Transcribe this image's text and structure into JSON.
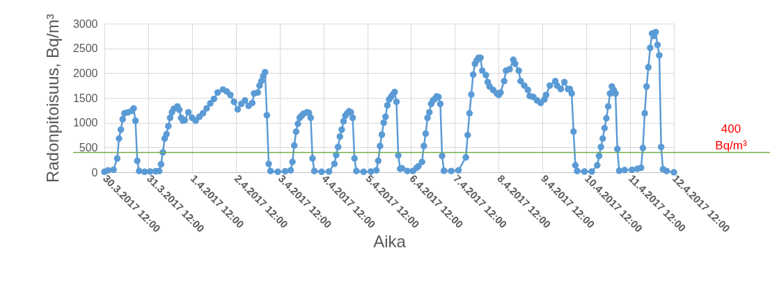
{
  "chart_data": {
    "type": "line",
    "xlabel": "Aika",
    "ylabel": "Radonpitoisuus, Bq/m³",
    "x": [
      "2017-03-30T12:00",
      "2017-03-30T14:00",
      "2017-03-30T17:00",
      "2017-03-30T19:00",
      "2017-03-30T20:00",
      "2017-03-30T21:00",
      "2017-03-30T22:00",
      "2017-03-30T23:00",
      "2017-03-31T01:00",
      "2017-03-31T03:00",
      "2017-03-31T04:00",
      "2017-03-31T05:00",
      "2017-03-31T06:00",
      "2017-03-31T07:00",
      "2017-03-31T10:00",
      "2017-03-31T13:00",
      "2017-03-31T16:00",
      "2017-03-31T18:00",
      "2017-03-31T19:00",
      "2017-03-31T20:00",
      "2017-03-31T21:00",
      "2017-03-31T22:00",
      "2017-03-31T23:00",
      "2017-04-01T00:00",
      "2017-04-01T01:00",
      "2017-04-01T02:00",
      "2017-04-01T04:00",
      "2017-04-01T05:00",
      "2017-04-01T06:00",
      "2017-04-01T07:00",
      "2017-04-01T08:00",
      "2017-04-01T10:00",
      "2017-04-01T12:00",
      "2017-04-01T14:00",
      "2017-04-01T16:00",
      "2017-04-01T18:00",
      "2017-04-01T20:00",
      "2017-04-01T22:00",
      "2017-04-02T00:00",
      "2017-04-02T02:00",
      "2017-04-02T05:00",
      "2017-04-02T07:00",
      "2017-04-02T09:00",
      "2017-04-02T11:00",
      "2017-04-02T13:00",
      "2017-04-02T15:00",
      "2017-04-02T17:00",
      "2017-04-02T19:00",
      "2017-04-02T21:00",
      "2017-04-02T22:00",
      "2017-04-03T00:00",
      "2017-04-03T01:00",
      "2017-04-03T02:00",
      "2017-04-03T03:00",
      "2017-04-03T04:00",
      "2017-04-03T05:00",
      "2017-04-03T06:00",
      "2017-04-03T07:00",
      "2017-04-03T11:00",
      "2017-04-03T15:00",
      "2017-04-03T18:00",
      "2017-04-03T19:00",
      "2017-04-03T20:00",
      "2017-04-03T21:00",
      "2017-04-03T22:00",
      "2017-04-03T23:00",
      "2017-04-04T00:00",
      "2017-04-04T01:00",
      "2017-04-04T03:00",
      "2017-04-04T04:00",
      "2017-04-04T05:00",
      "2017-04-04T06:00",
      "2017-04-04T07:00",
      "2017-04-04T11:00",
      "2017-04-04T15:00",
      "2017-04-04T18:00",
      "2017-04-04T19:00",
      "2017-04-04T20:00",
      "2017-04-04T21:00",
      "2017-04-04T22:00",
      "2017-04-04T23:00",
      "2017-04-05T00:00",
      "2017-04-05T01:00",
      "2017-04-05T02:00",
      "2017-04-05T03:00",
      "2017-04-05T04:00",
      "2017-04-05T05:00",
      "2017-04-05T06:00",
      "2017-04-05T10:00",
      "2017-04-05T14:00",
      "2017-04-05T17:00",
      "2017-04-05T18:00",
      "2017-04-05T19:00",
      "2017-04-05T20:00",
      "2017-04-05T21:00",
      "2017-04-05T22:00",
      "2017-04-05T23:00",
      "2017-04-06T00:00",
      "2017-04-06T01:00",
      "2017-04-06T02:00",
      "2017-04-06T03:00",
      "2017-04-06T04:00",
      "2017-04-06T05:00",
      "2017-04-06T06:00",
      "2017-04-06T07:00",
      "2017-04-06T10:00",
      "2017-04-06T13:00",
      "2017-04-06T15:00",
      "2017-04-06T16:00",
      "2017-04-06T18:00",
      "2017-04-06T19:00",
      "2017-04-06T20:00",
      "2017-04-06T21:00",
      "2017-04-06T22:00",
      "2017-04-06T23:00",
      "2017-04-07T00:00",
      "2017-04-07T01:00",
      "2017-04-07T02:00",
      "2017-04-07T03:00",
      "2017-04-07T04:00",
      "2017-04-07T05:00",
      "2017-04-07T06:00",
      "2017-04-07T10:00",
      "2017-04-07T14:00",
      "2017-04-07T18:00",
      "2017-04-07T19:00",
      "2017-04-07T20:00",
      "2017-04-07T21:00",
      "2017-04-07T22:00",
      "2017-04-07T23:00",
      "2017-04-08T00:00",
      "2017-04-08T01:00",
      "2017-04-08T02:00",
      "2017-04-08T03:00",
      "2017-04-08T05:00",
      "2017-04-08T06:00",
      "2017-04-08T07:00",
      "2017-04-08T09:00",
      "2017-04-08T11:00",
      "2017-04-08T12:00",
      "2017-04-08T13:00",
      "2017-04-08T15:00",
      "2017-04-08T16:00",
      "2017-04-08T18:00",
      "2017-04-08T20:00",
      "2017-04-08T21:00",
      "2017-04-08T23:00",
      "2017-04-09T00:00",
      "2017-04-09T02:00",
      "2017-04-09T04:00",
      "2017-04-09T05:00",
      "2017-04-09T07:00",
      "2017-04-09T09:00",
      "2017-04-09T11:00",
      "2017-04-09T13:00",
      "2017-04-09T14:00",
      "2017-04-09T16:00",
      "2017-04-09T19:00",
      "2017-04-09T20:00",
      "2017-04-09T22:00",
      "2017-04-10T00:00",
      "2017-04-10T02:00",
      "2017-04-10T03:00",
      "2017-04-10T04:00",
      "2017-04-10T05:00",
      "2017-04-10T06:00",
      "2017-04-10T07:00",
      "2017-04-10T11:00",
      "2017-04-10T15:00",
      "2017-04-10T18:00",
      "2017-04-10T19:00",
      "2017-04-10T20:00",
      "2017-04-10T21:00",
      "2017-04-10T22:00",
      "2017-04-10T23:00",
      "2017-04-11T00:00",
      "2017-04-11T01:00",
      "2017-04-11T02:00",
      "2017-04-11T03:00",
      "2017-04-11T04:00",
      "2017-04-11T05:00",
      "2017-04-11T06:00",
      "2017-04-11T09:00",
      "2017-04-11T13:00",
      "2017-04-11T16:00",
      "2017-04-11T18:00",
      "2017-04-11T19:00",
      "2017-04-11T20:00",
      "2017-04-11T21:00",
      "2017-04-11T22:00",
      "2017-04-11T23:00",
      "2017-04-12T00:00",
      "2017-04-12T01:00",
      "2017-04-12T02:00",
      "2017-04-12T03:00",
      "2017-04-12T04:00",
      "2017-04-12T05:00",
      "2017-04-12T06:00",
      "2017-04-12T08:00",
      "2017-04-12T12:00"
    ],
    "series": [
      {
        "color": "#5b9bd5",
        "values": [
          10,
          40,
          50,
          280,
          680,
          860,
          1070,
          1190,
          1210,
          1240,
          1290,
          1040,
          230,
          25,
          10,
          15,
          20,
          25,
          160,
          400,
          680,
          770,
          930,
          1100,
          1210,
          1280,
          1330,
          1260,
          1100,
          1040,
          1050,
          1210,
          1100,
          1040,
          1120,
          1190,
          1290,
          1390,
          1480,
          1610,
          1670,
          1630,
          1560,
          1420,
          1270,
          1380,
          1450,
          1340,
          1400,
          1590,
          1610,
          1750,
          1840,
          1940,
          2020,
          1150,
          170,
          25,
          10,
          20,
          40,
          210,
          540,
          820,
          980,
          1100,
          1140,
          1180,
          1210,
          1200,
          1100,
          280,
          25,
          10,
          15,
          170,
          350,
          510,
          720,
          860,
          1030,
          1140,
          1190,
          1230,
          1210,
          1100,
          280,
          25,
          10,
          15,
          40,
          230,
          530,
          760,
          1000,
          1120,
          1350,
          1470,
          1520,
          1570,
          1620,
          1420,
          340,
          70,
          80,
          25,
          25,
          90,
          120,
          210,
          530,
          780,
          1100,
          1210,
          1380,
          1450,
          1480,
          1530,
          1520,
          1380,
          330,
          30,
          25,
          40,
          300,
          750,
          1190,
          1570,
          1970,
          2190,
          2260,
          2310,
          2310,
          2050,
          1960,
          1820,
          1730,
          1660,
          1590,
          1560,
          1610,
          1840,
          2050,
          2080,
          2270,
          2190,
          2050,
          1840,
          1750,
          1660,
          1540,
          1520,
          1450,
          1400,
          1470,
          1560,
          1750,
          1840,
          1750,
          1680,
          1820,
          1680,
          1680,
          1590,
          820,
          140,
          25,
          15,
          15,
          140,
          330,
          510,
          680,
          890,
          1090,
          1330,
          1590,
          1730,
          1660,
          1590,
          470,
          30,
          45,
          50,
          70,
          90,
          490,
          1190,
          1730,
          2120,
          2510,
          2800,
          2750,
          2830,
          2570,
          2360,
          510,
          60,
          25,
          0
        ]
      }
    ],
    "xlim": [
      "2017-03-30T12:00",
      "2017-04-12T12:00"
    ],
    "xticks": [
      {
        "value": "2017-03-30T12:00",
        "label": "30.3.2017 12:00"
      },
      {
        "value": "2017-03-31T12:00",
        "label": "31.3.2017 12:00"
      },
      {
        "value": "2017-04-01T12:00",
        "label": "1.4.2017 12:00"
      },
      {
        "value": "2017-04-02T12:00",
        "label": "2.4.2017 12:00"
      },
      {
        "value": "2017-04-03T12:00",
        "label": "3.4.2017 12:00"
      },
      {
        "value": "2017-04-04T12:00",
        "label": "4.4.2017 12:00"
      },
      {
        "value": "2017-04-05T12:00",
        "label": "5.4.2017 12:00"
      },
      {
        "value": "2017-04-06T12:00",
        "label": "6.4.2017 12:00"
      },
      {
        "value": "2017-04-07T12:00",
        "label": "7.4.2017 12:00"
      },
      {
        "value": "2017-04-08T12:00",
        "label": "8.4.2017 12:00"
      },
      {
        "value": "2017-04-09T12:00",
        "label": "9.4.2017 12:00"
      },
      {
        "value": "2017-04-10T12:00",
        "label": "10.4.2017 12:00"
      },
      {
        "value": "2017-04-11T12:00",
        "label": "11.4.2017 12:00"
      },
      {
        "value": "2017-04-12T12:00",
        "label": "12.4.2017 12:00"
      }
    ],
    "ylim": [
      0,
      3000
    ],
    "yticks": [
      0,
      500,
      1000,
      1500,
      2000,
      2500,
      3000
    ],
    "grid": true,
    "legend": false,
    "marker": "circle",
    "line_style": "solid",
    "ref_lines": [
      {
        "axis": "y",
        "value": 400,
        "label": "400 Bq/m³",
        "color": "#70ad47"
      }
    ]
  }
}
